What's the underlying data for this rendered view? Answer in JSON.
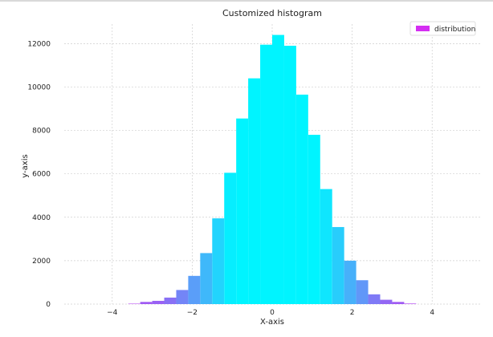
{
  "chart_data": {
    "type": "bar",
    "title": "Customized histogram",
    "xlabel": "X-axis",
    "ylabel": "y-axis",
    "xlim": [
      -5.2,
      5.2
    ],
    "ylim": [
      0,
      12900
    ],
    "xticks": [
      -4,
      -2,
      0,
      2,
      4
    ],
    "xtick_labels": [
      "−4",
      "−2",
      "0",
      "2",
      "4"
    ],
    "yticks": [
      0,
      2000,
      4000,
      6000,
      8000,
      10000,
      12000
    ],
    "ytick_labels": [
      "0",
      "2000",
      "4000",
      "6000",
      "8000",
      "10000",
      "12000"
    ],
    "grid": true,
    "legend": {
      "position": "top-right",
      "entries": [
        "distribution"
      ]
    },
    "series": [
      {
        "name": "distribution",
        "bin_edges": [
          -3.6,
          -3.3,
          -3.0,
          -2.7,
          -2.4,
          -2.1,
          -1.8,
          -1.5,
          -1.2,
          -0.9,
          -0.6,
          -0.3,
          0.0,
          0.3,
          0.6,
          0.9,
          1.2,
          1.5,
          1.8,
          2.1,
          2.4,
          2.7,
          3.0,
          3.3,
          3.6
        ],
        "values": [
          20,
          100,
          150,
          300,
          650,
          1300,
          2350,
          3950,
          6050,
          8550,
          10400,
          11950,
          12400,
          11900,
          9650,
          7800,
          5300,
          3550,
          2000,
          1100,
          450,
          200,
          100,
          25
        ]
      }
    ],
    "colors": {
      "low_end": "#d02cf0",
      "mid": "#00f4ff",
      "legend_patch": "#d42ef2",
      "grid": "#cfcfcf"
    }
  }
}
